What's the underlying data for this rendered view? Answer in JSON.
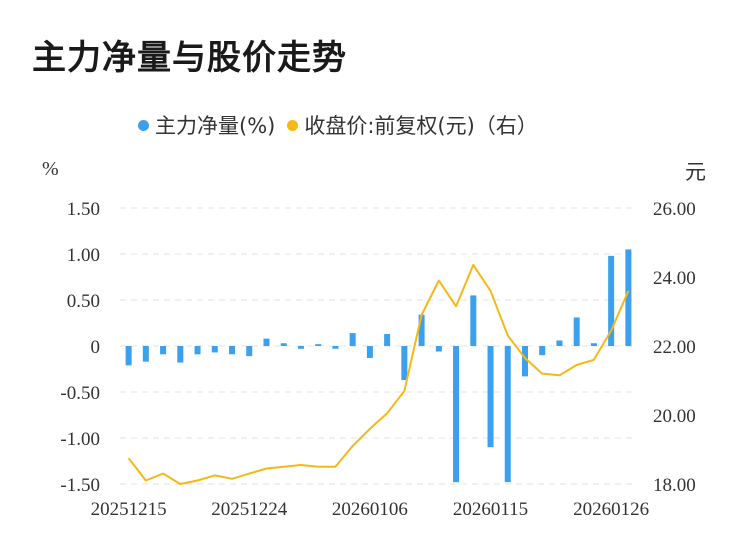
{
  "title": "主力净量与股价走势",
  "legend": {
    "net_label": "主力净量(%)",
    "price_label": "收盘价:前复权(元)（右）"
  },
  "units": {
    "left": "%",
    "right": "元"
  },
  "colors": {
    "bar": "#3ba0ee",
    "line": "#f5b818",
    "grid": "#e3e3e3"
  },
  "chart_data": {
    "type": "bar",
    "categories": [
      "20251215",
      "20251216",
      "20251217",
      "20251218",
      "20251219",
      "20251222",
      "20251223",
      "20251224",
      "20251225",
      "20251226",
      "20251229",
      "20251230",
      "20251231",
      "20260105",
      "20260106",
      "20260107",
      "20260108",
      "20260109",
      "20260112",
      "20260113",
      "20260114",
      "20260115",
      "20260116",
      "20260119",
      "20260120",
      "20260121",
      "20260122",
      "20260123",
      "20260126",
      "20260127"
    ],
    "x_tick_labels": [
      "20251215",
      "20251224",
      "20260106",
      "20260115",
      "20260126"
    ],
    "series": [
      {
        "name": "主力净量(%)",
        "type": "bar",
        "axis": "left",
        "values": [
          -0.21,
          -0.17,
          -0.09,
          -0.18,
          -0.09,
          -0.07,
          -0.09,
          -0.11,
          0.08,
          0.03,
          -0.03,
          0.02,
          -0.03,
          0.14,
          -0.13,
          0.13,
          -0.37,
          0.34,
          -0.06,
          -1.48,
          0.55,
          -1.1,
          -1.48,
          -0.33,
          -0.1,
          0.06,
          0.31,
          0.03,
          0.98,
          1.05
        ]
      },
      {
        "name": "收盘价:前复权(元)（右）",
        "type": "line",
        "axis": "right",
        "values": [
          18.75,
          18.1,
          18.3,
          18.0,
          18.1,
          18.25,
          18.15,
          18.3,
          18.45,
          18.5,
          18.55,
          18.5,
          18.5,
          19.1,
          19.6,
          20.05,
          20.7,
          22.9,
          23.9,
          23.15,
          24.35,
          23.6,
          22.3,
          21.65,
          21.2,
          21.15,
          21.45,
          21.6,
          22.45,
          23.6
        ]
      }
    ],
    "y_left": {
      "ticks": [
        "1.50",
        "1.00",
        "0.50",
        "0",
        "-0.50",
        "-1.00",
        "-1.50"
      ],
      "ylim": [
        -1.5,
        1.5
      ]
    },
    "y_right": {
      "ticks": [
        "26.00",
        "24.00",
        "22.00",
        "20.00",
        "18.00"
      ],
      "ylim": [
        18,
        26
      ]
    },
    "grid": true,
    "legend_position": "top"
  }
}
